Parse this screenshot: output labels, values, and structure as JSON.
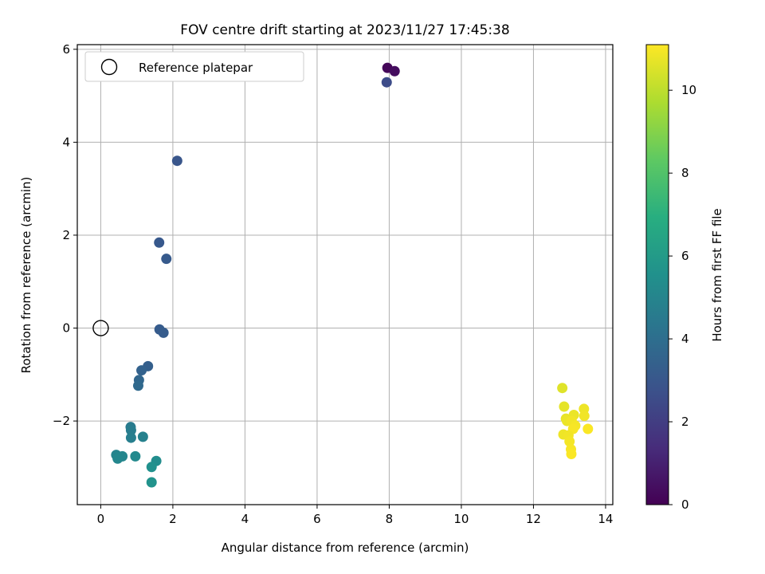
{
  "chart_data": {
    "type": "scatter",
    "title": "FOV centre drift starting at 2023/11/27 17:45:38",
    "xlabel": "Angular distance from reference (arcmin)",
    "ylabel": "Rotation from reference (arcmin)",
    "xlim": [
      -0.65,
      14.2
    ],
    "ylim": [
      -3.8,
      6.1
    ],
    "xticks": [
      0,
      2,
      4,
      6,
      8,
      10,
      12,
      14
    ],
    "yticks": [
      -2,
      0,
      2,
      4,
      6
    ],
    "grid": true,
    "legend": {
      "position": "top-left",
      "entries": [
        "Reference platepar"
      ]
    },
    "reference_point": {
      "x": 0,
      "y": 0,
      "label": "Reference platepar"
    },
    "colorbar": {
      "label": "Hours from first FF file",
      "range": [
        0,
        11.1
      ],
      "ticks": [
        0,
        2,
        4,
        6,
        8,
        10
      ],
      "colormap": "viridis"
    },
    "points": [
      {
        "x": 7.95,
        "y": 5.6,
        "c": 0.2
      },
      {
        "x": 8.15,
        "y": 5.53,
        "c": 0.4
      },
      {
        "x": 7.93,
        "y": 5.29,
        "c": 2.6
      },
      {
        "x": 2.12,
        "y": 3.6,
        "c": 3.0
      },
      {
        "x": 1.62,
        "y": 1.84,
        "c": 3.1
      },
      {
        "x": 1.82,
        "y": 1.49,
        "c": 3.15
      },
      {
        "x": 1.63,
        "y": -0.03,
        "c": 3.2
      },
      {
        "x": 1.74,
        "y": -0.1,
        "c": 3.25
      },
      {
        "x": 1.31,
        "y": -0.82,
        "c": 3.4
      },
      {
        "x": 1.13,
        "y": -0.91,
        "c": 3.5
      },
      {
        "x": 1.06,
        "y": -1.12,
        "c": 3.7
      },
      {
        "x": 1.04,
        "y": -1.24,
        "c": 3.8
      },
      {
        "x": 0.83,
        "y": -2.13,
        "c": 4.6
      },
      {
        "x": 0.84,
        "y": -2.2,
        "c": 4.7
      },
      {
        "x": 0.84,
        "y": -2.36,
        "c": 4.8
      },
      {
        "x": 1.17,
        "y": -2.34,
        "c": 4.9
      },
      {
        "x": 0.43,
        "y": -2.73,
        "c": 5.0
      },
      {
        "x": 0.5,
        "y": -2.77,
        "c": 5.05
      },
      {
        "x": 0.6,
        "y": -2.76,
        "c": 5.1
      },
      {
        "x": 0.47,
        "y": -2.81,
        "c": 5.15
      },
      {
        "x": 0.96,
        "y": -2.76,
        "c": 5.25
      },
      {
        "x": 1.54,
        "y": -2.86,
        "c": 5.4
      },
      {
        "x": 1.41,
        "y": -2.99,
        "c": 5.6
      },
      {
        "x": 1.41,
        "y": -3.32,
        "c": 5.7
      },
      {
        "x": 12.8,
        "y": -1.29,
        "c": 10.6
      },
      {
        "x": 12.85,
        "y": -1.69,
        "c": 10.7
      },
      {
        "x": 13.12,
        "y": -1.87,
        "c": 10.8
      },
      {
        "x": 13.4,
        "y": -1.74,
        "c": 10.85
      },
      {
        "x": 13.41,
        "y": -1.89,
        "c": 10.9
      },
      {
        "x": 12.9,
        "y": -1.95,
        "c": 10.75
      },
      {
        "x": 12.93,
        "y": -2.0,
        "c": 10.8
      },
      {
        "x": 13.06,
        "y": -2.0,
        "c": 10.9
      },
      {
        "x": 13.16,
        "y": -2.1,
        "c": 10.95
      },
      {
        "x": 13.1,
        "y": -2.17,
        "c": 11.0
      },
      {
        "x": 13.51,
        "y": -2.17,
        "c": 11.05
      },
      {
        "x": 12.83,
        "y": -2.29,
        "c": 10.85
      },
      {
        "x": 12.97,
        "y": -2.31,
        "c": 10.9
      },
      {
        "x": 13.0,
        "y": -2.44,
        "c": 10.95
      },
      {
        "x": 13.04,
        "y": -2.61,
        "c": 11.0
      },
      {
        "x": 13.05,
        "y": -2.71,
        "c": 11.05
      }
    ]
  }
}
